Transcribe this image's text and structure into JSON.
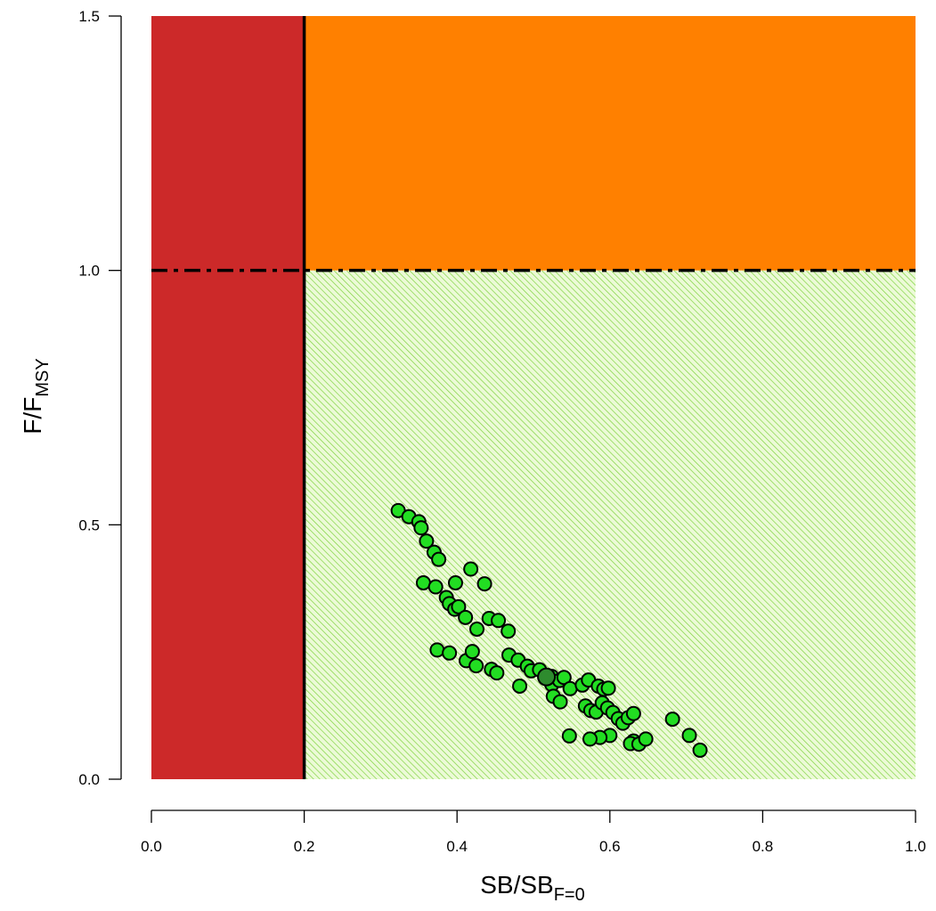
{
  "chart_data": {
    "type": "scatter",
    "xlabel": {
      "main": "SB/SB",
      "sub": "F=0"
    },
    "ylabel": {
      "main": "F/F",
      "sub": "MSY"
    },
    "xlim": [
      0,
      1
    ],
    "ylim": [
      0,
      1.5
    ],
    "x_ticks": [
      "0.0",
      "0.2",
      "0.4",
      "0.6",
      "0.8",
      "1.0"
    ],
    "y_ticks": [
      "0.0",
      "0.5",
      "1.0",
      "1.5"
    ],
    "reference_lines": {
      "sb_limit": 0.2,
      "f_msy": 1.0
    },
    "colors": {
      "overfished_zone": "#CC2929",
      "overfishing_zone": "#FF8000",
      "healthy_zone": "#C8F08C",
      "hatch": "#7FD43F",
      "point_fill": "#22DD22",
      "current_point_fill": "#2E8B2E",
      "point_stroke": "#000000"
    },
    "series": [
      {
        "points": [
          [
            0.323,
            0.528
          ],
          [
            0.337,
            0.516
          ],
          [
            0.35,
            0.506
          ],
          [
            0.353,
            0.494
          ],
          [
            0.36,
            0.468
          ],
          [
            0.37,
            0.446
          ],
          [
            0.376,
            0.432
          ],
          [
            0.356,
            0.386
          ],
          [
            0.372,
            0.378
          ],
          [
            0.386,
            0.357
          ],
          [
            0.39,
            0.345
          ],
          [
            0.397,
            0.334
          ],
          [
            0.398,
            0.386
          ],
          [
            0.402,
            0.339
          ],
          [
            0.411,
            0.318
          ],
          [
            0.418,
            0.413
          ],
          [
            0.426,
            0.295
          ],
          [
            0.436,
            0.384
          ],
          [
            0.442,
            0.316
          ],
          [
            0.454,
            0.312
          ],
          [
            0.467,
            0.291
          ],
          [
            0.374,
            0.254
          ],
          [
            0.39,
            0.248
          ],
          [
            0.412,
            0.233
          ],
          [
            0.42,
            0.251
          ],
          [
            0.425,
            0.223
          ],
          [
            0.445,
            0.216
          ],
          [
            0.452,
            0.209
          ],
          [
            0.468,
            0.244
          ],
          [
            0.48,
            0.234
          ],
          [
            0.492,
            0.222
          ],
          [
            0.497,
            0.213
          ],
          [
            0.508,
            0.215
          ],
          [
            0.524,
            0.202
          ],
          [
            0.524,
            0.186
          ],
          [
            0.534,
            0.194
          ],
          [
            0.54,
            0.2
          ],
          [
            0.548,
            0.178
          ],
          [
            0.564,
            0.185
          ],
          [
            0.572,
            0.195
          ],
          [
            0.585,
            0.183
          ],
          [
            0.592,
            0.177
          ],
          [
            0.598,
            0.179
          ],
          [
            0.482,
            0.183
          ],
          [
            0.526,
            0.163
          ],
          [
            0.535,
            0.152
          ],
          [
            0.568,
            0.144
          ],
          [
            0.575,
            0.135
          ],
          [
            0.582,
            0.132
          ],
          [
            0.59,
            0.15
          ],
          [
            0.597,
            0.14
          ],
          [
            0.604,
            0.131
          ],
          [
            0.611,
            0.119
          ],
          [
            0.617,
            0.11
          ],
          [
            0.624,
            0.121
          ],
          [
            0.631,
            0.129
          ],
          [
            0.631,
            0.075
          ],
          [
            0.627,
            0.07
          ],
          [
            0.638,
            0.069
          ],
          [
            0.647,
            0.079
          ],
          [
            0.6,
            0.086
          ],
          [
            0.587,
            0.082
          ],
          [
            0.574,
            0.079
          ],
          [
            0.547,
            0.085
          ],
          [
            0.682,
            0.118
          ],
          [
            0.704,
            0.086
          ],
          [
            0.718,
            0.057
          ]
        ]
      }
    ],
    "current_point": [
      0.517,
      0.201
    ]
  }
}
